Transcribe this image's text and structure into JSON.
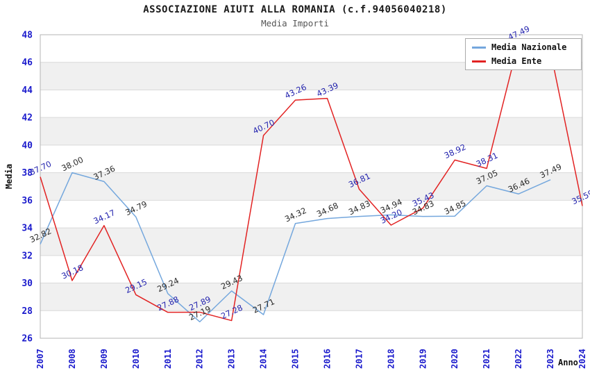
{
  "header": {
    "title": "ASSOCIAZIONE AIUTI ALLA ROMANIA (c.f.94056040218)",
    "subtitle": "Media Importi"
  },
  "chart_data": {
    "type": "line",
    "title": "ASSOCIAZIONE AIUTI ALLA ROMANIA (c.f.94056040218)",
    "subtitle": "Media Importi",
    "xlabel": "Anno",
    "ylabel": "Media",
    "ylim": [
      26,
      48
    ],
    "ytick_step": 2,
    "yticks": [
      26,
      28,
      30,
      32,
      34,
      36,
      38,
      40,
      42,
      44,
      46,
      48
    ],
    "grid": "horizontal-bands",
    "legend_position": "top-right",
    "categories": [
      "2007",
      "2008",
      "2009",
      "2010",
      "2011",
      "2012",
      "2013",
      "2014",
      "2015",
      "2016",
      "2017",
      "2018",
      "2019",
      "2020",
      "2021",
      "2022",
      "2023",
      "2024"
    ],
    "series": [
      {
        "name": "Media Nazionale",
        "color": "#74A7DD",
        "label_color": "#2b2b2b",
        "values": [
          32.82,
          38.0,
          37.36,
          34.79,
          29.24,
          27.19,
          29.43,
          27.71,
          34.32,
          34.68,
          34.83,
          34.94,
          34.83,
          34.85,
          37.05,
          36.46,
          37.49,
          null
        ],
        "labels": [
          "32.82",
          "38.00",
          "37.36",
          "34.79",
          "29.24",
          "27.19",
          "29.43",
          "27.71",
          "34.32",
          "34.68",
          "34.83",
          "34.94",
          "34.83",
          "34.85",
          "37.05",
          "36.46",
          "37.49",
          ""
        ]
      },
      {
        "name": "Media Ente",
        "color": "#E22222",
        "label_color": "#2424AE",
        "values": [
          37.7,
          30.18,
          34.17,
          29.15,
          27.88,
          27.89,
          27.28,
          40.7,
          43.26,
          43.39,
          36.81,
          34.2,
          35.43,
          38.92,
          38.31,
          47.49,
          46.8,
          35.59
        ],
        "labels": [
          "37.70",
          "30.18",
          "34.17",
          "29.15",
          "27.88",
          "27.89",
          "27.28",
          "40.70",
          "43.26",
          "43.39",
          "36.81",
          "34.20",
          "35.43",
          "38.92",
          "38.31",
          "47.49",
          "",
          "35.59"
        ]
      }
    ],
    "style": {
      "band_fill": "#f0f0f0",
      "gridline_color": "#d9d9d9",
      "border_color": "#b5b5b5",
      "tick_color": "#1a1acc"
    }
  }
}
